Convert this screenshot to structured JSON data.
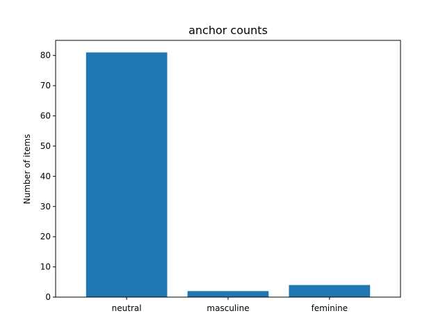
{
  "chart_data": {
    "type": "bar",
    "title": "anchor counts",
    "xlabel": "",
    "ylabel": "Number of items",
    "categories": [
      "neutral",
      "masculine",
      "feminine"
    ],
    "values": [
      81,
      2,
      4
    ],
    "ylim": [
      0,
      85
    ],
    "yticks": [
      0,
      10,
      20,
      30,
      40,
      50,
      60,
      70,
      80
    ],
    "bar_color": "#1f77b4",
    "grid": false,
    "legend": "none"
  }
}
